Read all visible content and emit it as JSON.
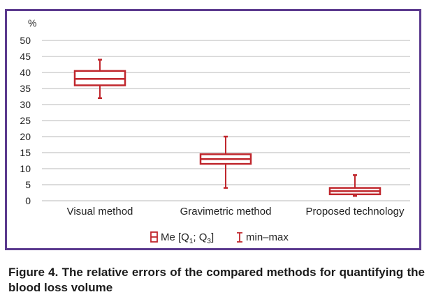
{
  "caption": "Figure 4. The relative errors of the compared methods for quantifying the blood loss volume",
  "colors": {
    "frame": "#5b3a8e",
    "box": "#c0272d",
    "grid": "#b8b8b8"
  },
  "chart_data": {
    "type": "boxplot",
    "y_unit": "%",
    "ylim": [
      0,
      50
    ],
    "y_ticks": [
      0,
      5,
      10,
      15,
      20,
      25,
      30,
      35,
      40,
      45,
      50
    ],
    "grid": true,
    "legend_position": "bottom",
    "legend": {
      "box": {
        "prefix": "Me [Q",
        "sub1": "1",
        "mid": "; Q",
        "sub3": "3",
        "suffix": "]"
      },
      "whisker": "min–max"
    },
    "categories": [
      "Visual method",
      "Gravimetric method",
      "Proposed technology"
    ],
    "boxes": [
      {
        "category": "Visual method",
        "min": 32,
        "q1": 36,
        "median": 38,
        "q3": 40.5,
        "max": 44
      },
      {
        "category": "Gravimetric method",
        "min": 4,
        "q1": 11.5,
        "median": 13,
        "q3": 14.5,
        "max": 20
      },
      {
        "category": "Proposed technology",
        "min": 1.5,
        "q1": 2,
        "median": 3,
        "q3": 4,
        "max": 8
      }
    ]
  }
}
